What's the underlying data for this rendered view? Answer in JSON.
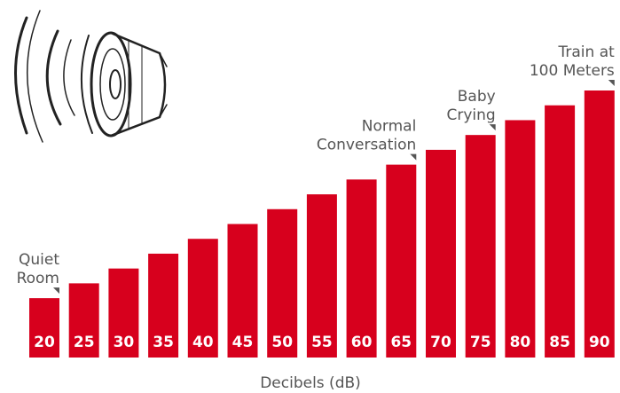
{
  "chart_data": {
    "type": "bar",
    "values": [
      20,
      25,
      30,
      35,
      40,
      45,
      50,
      55,
      60,
      65,
      70,
      75,
      80,
      85,
      90
    ],
    "color": "#d7001d",
    "xlabel": "Decibels (dB)",
    "annotations": [
      [
        "Quiet",
        "Room"
      ],
      null,
      null,
      null,
      null,
      null,
      null,
      null,
      null,
      [
        "Normal",
        "Conversation"
      ],
      null,
      [
        "Baby",
        "Crying"
      ],
      null,
      null,
      [
        "Train at",
        "100 Meters"
      ]
    ]
  }
}
